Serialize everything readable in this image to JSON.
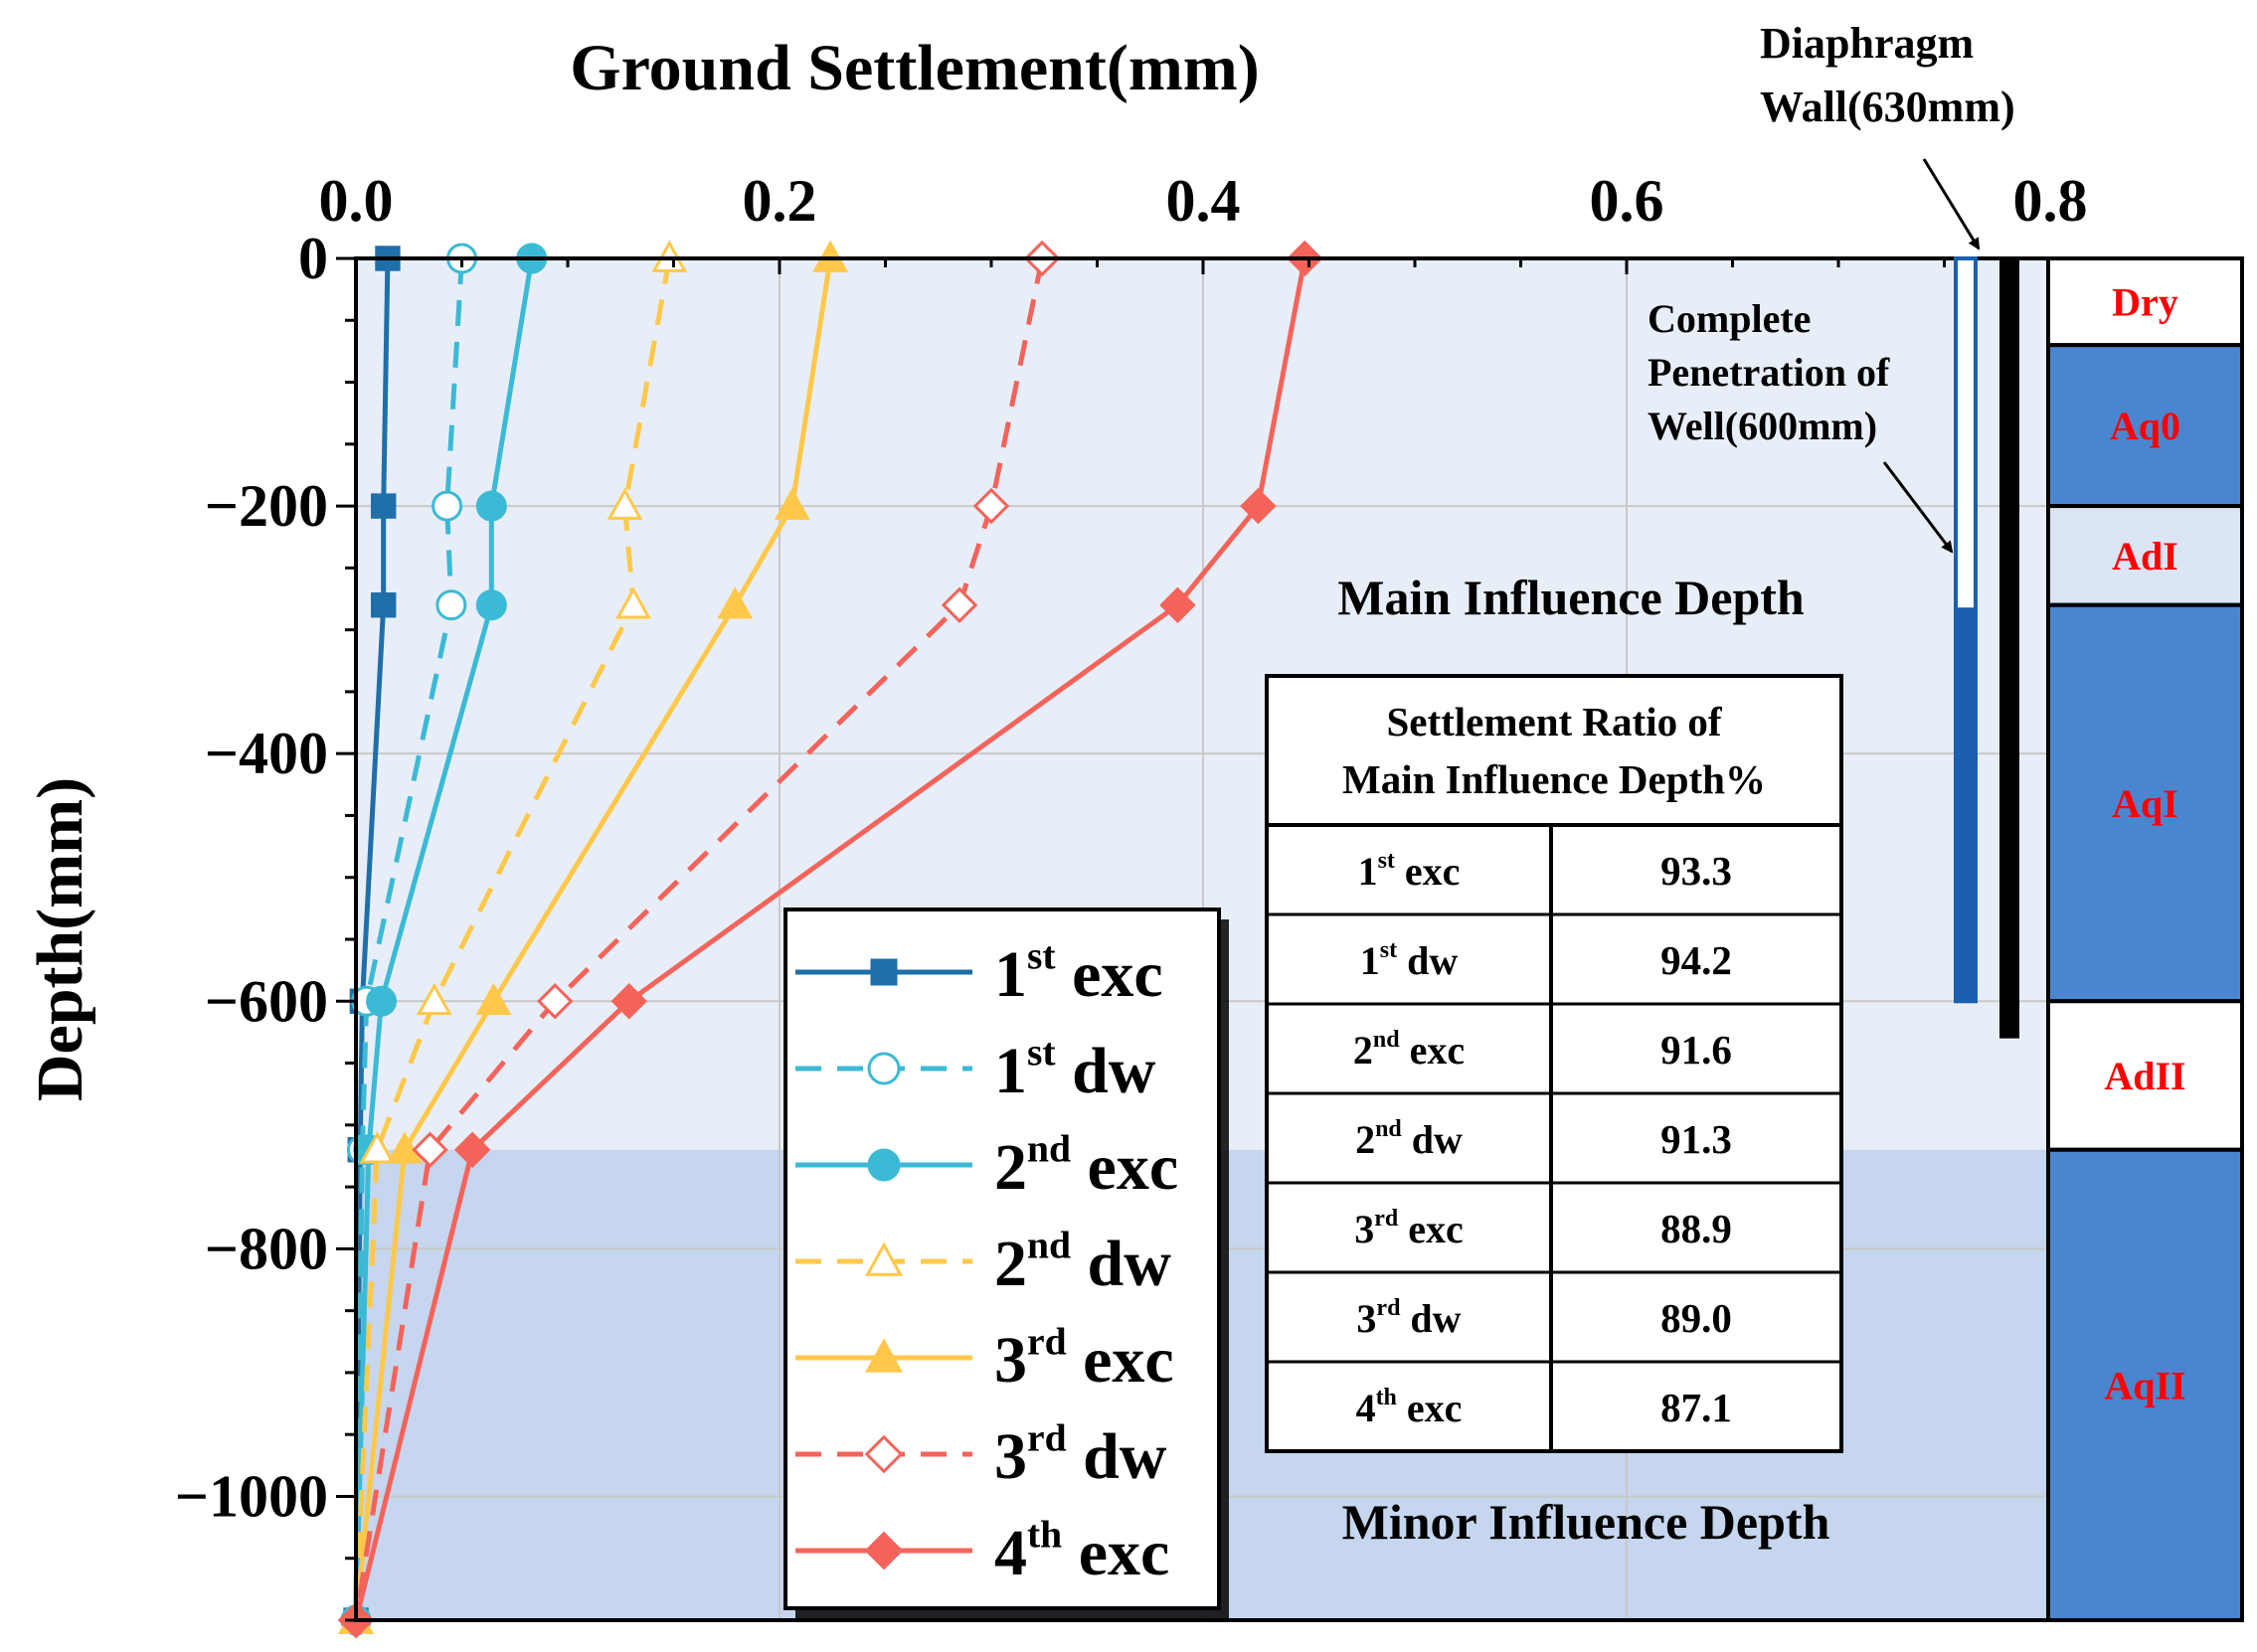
{
  "chart_data": {
    "type": "line",
    "title": "Ground Settlement(mm)",
    "xlabel": "Ground Settlement(mm)",
    "ylabel": "Depth(mm)",
    "xlim": [
      0,
      0.8
    ],
    "ylim": [
      -1100,
      0
    ],
    "xticks": [
      "0.0",
      "0.2",
      "0.4",
      "0.6",
      "0.8"
    ],
    "yticks": [
      "0",
      "−200",
      "−400",
      "−600",
      "−800",
      "−1000"
    ],
    "depths": [
      0,
      -200,
      -280,
      -600,
      -720,
      -1100
    ],
    "series": [
      {
        "name": "1st exc",
        "base": "1",
        "sup": "st",
        "rest": "exc",
        "color": "#1f6fa8",
        "dash": false,
        "marker": "square",
        "filled": true,
        "values": [
          0.015,
          0.013,
          0.013,
          0.003,
          0.002,
          0.0
        ]
      },
      {
        "name": "1st dw",
        "base": "1",
        "sup": "st",
        "rest": "dw",
        "color": "#3bbad6",
        "dash": true,
        "marker": "circle",
        "filled": false,
        "values": [
          0.05,
          0.043,
          0.045,
          0.005,
          0.003,
          0.0
        ]
      },
      {
        "name": "2nd exc",
        "base": "2",
        "sup": "nd",
        "rest": "exc",
        "color": "#3bbad6",
        "dash": false,
        "marker": "circle",
        "filled": true,
        "values": [
          0.083,
          0.064,
          0.064,
          0.012,
          0.006,
          0.0
        ]
      },
      {
        "name": "2nd dw",
        "base": "2",
        "sup": "nd",
        "rest": "dw",
        "color": "#ffc84a",
        "dash": true,
        "marker": "triangle",
        "filled": false,
        "values": [
          0.148,
          0.127,
          0.131,
          0.037,
          0.01,
          0.0
        ]
      },
      {
        "name": "3rd exc",
        "base": "3",
        "sup": "rd",
        "rest": "exc",
        "color": "#ffc84a",
        "dash": false,
        "marker": "triangle",
        "filled": true,
        "values": [
          0.224,
          0.206,
          0.179,
          0.065,
          0.023,
          0.0
        ]
      },
      {
        "name": "3rd dw",
        "base": "3",
        "sup": "rd",
        "rest": "dw",
        "color": "#f4635a",
        "dash": true,
        "marker": "diamond",
        "filled": false,
        "values": [
          0.324,
          0.3,
          0.285,
          0.094,
          0.035,
          0.0
        ]
      },
      {
        "name": "4th exc",
        "base": "4",
        "sup": "th",
        "rest": "exc",
        "color": "#f4635a",
        "dash": false,
        "marker": "diamond",
        "filled": true,
        "values": [
          0.448,
          0.426,
          0.388,
          0.129,
          0.055,
          0.0
        ]
      }
    ],
    "zones": [
      {
        "name": "Main Influence Depth",
        "from": 0,
        "to": -720,
        "color": "#e8eef8"
      },
      {
        "name": "Minor Influence Depth",
        "from": -720,
        "to": -1100,
        "color": "#c5d6ee"
      }
    ],
    "annotations": {
      "wall": [
        "Diaphragm",
        "Wall(630mm)"
      ],
      "well": [
        "Complete",
        "Penetration of",
        "Well(600mm)"
      ]
    },
    "table": {
      "header": [
        "Settlement Ratio of",
        "Main Influence Depth%"
      ],
      "rows": [
        {
          "base": "1",
          "sup": "st",
          "rest": "exc",
          "value": "93.3"
        },
        {
          "base": "1",
          "sup": "st",
          "rest": "dw",
          "value": "94.2"
        },
        {
          "base": "2",
          "sup": "nd",
          "rest": "exc",
          "value": "91.6"
        },
        {
          "base": "2",
          "sup": "nd",
          "rest": "dw",
          "value": "91.3"
        },
        {
          "base": "3",
          "sup": "rd",
          "rest": "exc",
          "value": "88.9"
        },
        {
          "base": "3",
          "sup": "rd",
          "rest": "dw",
          "value": "89.0"
        },
        {
          "base": "4",
          "sup": "th",
          "rest": "exc",
          "value": "87.1"
        }
      ]
    },
    "soil_layers": [
      {
        "name": "Dry",
        "from": 0,
        "to": -70,
        "color": "#ffffff"
      },
      {
        "name": "Aq0",
        "from": -70,
        "to": -200,
        "color": "#4a86d0"
      },
      {
        "name": "AdI",
        "from": -200,
        "to": -280,
        "color": "#dbe5f3"
      },
      {
        "name": "AqI",
        "from": -280,
        "to": -600,
        "color": "#4a86d0"
      },
      {
        "name": "AdII",
        "from": -600,
        "to": -720,
        "color": "#ffffff"
      },
      {
        "name": "AqII",
        "from": -720,
        "to": -1100,
        "color": "#4a86d0"
      }
    ]
  }
}
